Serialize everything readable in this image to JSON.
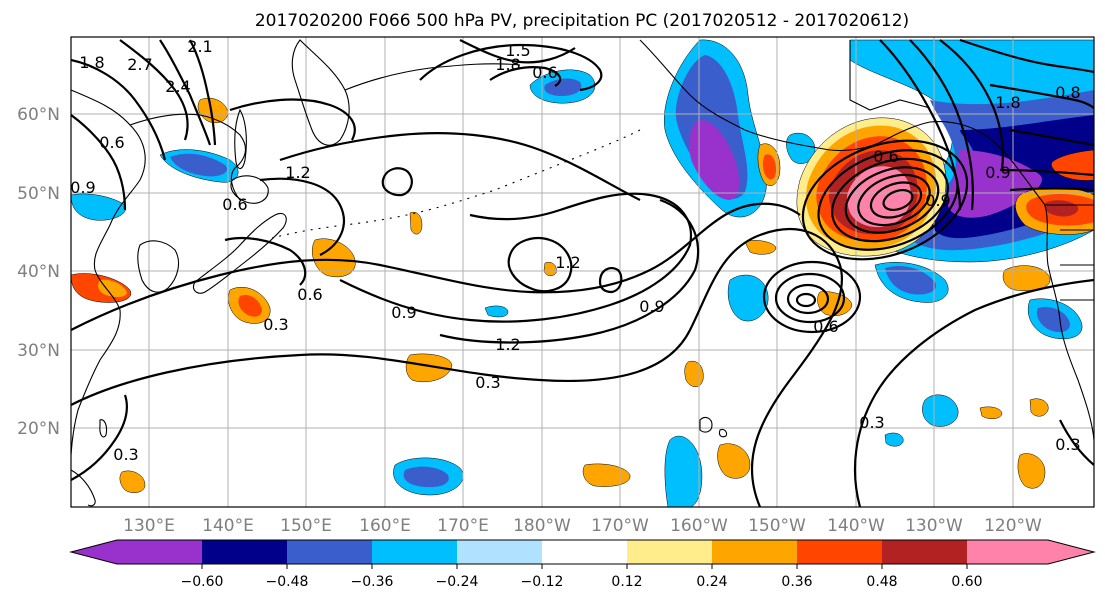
{
  "title": "2017020200 F066 500 hPa PV, precipitation PC (2017020512 - 2017020612)",
  "lat_labels": [
    "60°N",
    "50°N",
    "40°N",
    "30°N",
    "20°N"
  ],
  "lon_labels": [
    "130°E",
    "140°E",
    "150°E",
    "160°E",
    "170°E",
    "180°W",
    "170°W",
    "160°W",
    "150°W",
    "140°W",
    "130°W",
    "120°W"
  ],
  "colorbar": {
    "tick_labels": [
      "−0.60",
      "−0.48",
      "−0.36",
      "−0.24",
      "−0.12",
      "0.12",
      "0.24",
      "0.36",
      "0.48",
      "0.60"
    ],
    "colors": [
      "#9932cc",
      "#00008b",
      "#3a5fcd",
      "#00bfff",
      "#b0e2ff",
      "#ffffff",
      "#ffec8b",
      "#ffa500",
      "#ff4500",
      "#b22222",
      "#ff82ab"
    ]
  },
  "contour_labels": [
    {
      "text": "1.5"
    },
    {
      "text": "1.8"
    },
    {
      "text": "0.6"
    },
    {
      "text": "2.7"
    },
    {
      "text": "2.4"
    },
    {
      "text": "2.1"
    },
    {
      "text": "1.8"
    },
    {
      "text": "0.6"
    },
    {
      "text": "0.9"
    },
    {
      "text": "0.6"
    },
    {
      "text": "1.2"
    },
    {
      "text": "0.6"
    },
    {
      "text": "0.3"
    },
    {
      "text": "0.9"
    },
    {
      "text": "1.2"
    },
    {
      "text": "1.2"
    },
    {
      "text": "0.9"
    },
    {
      "text": "0.3"
    },
    {
      "text": "0.3"
    },
    {
      "text": "0.3"
    },
    {
      "text": "0.6"
    },
    {
      "text": "0.9"
    },
    {
      "text": "0.6"
    },
    {
      "text": "1.8"
    },
    {
      "text": "0.8"
    },
    {
      "text": "0.9"
    },
    {
      "text": "0.3"
    }
  ]
}
